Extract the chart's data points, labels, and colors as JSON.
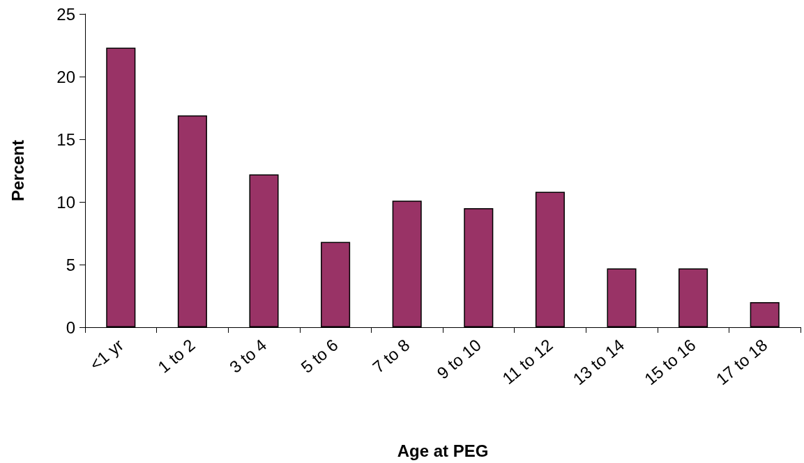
{
  "chart_data": {
    "type": "bar",
    "xlabel": "Age at PEG",
    "ylabel": "Percent",
    "categories": [
      "<1 yr",
      "1 to 2",
      "3 to 4",
      "5 to 6",
      "7 to 8",
      "9 to 10",
      "11 to 12",
      "13 to 14",
      "15 to 16",
      "17 to 18"
    ],
    "values": [
      22.3,
      16.9,
      12.2,
      6.8,
      10.1,
      9.5,
      10.8,
      4.7,
      4.7,
      2.0
    ],
    "color": "#993366",
    "ylim": [
      0,
      25
    ],
    "yticks": [
      0,
      5,
      10,
      15,
      20,
      25
    ],
    "grid": false
  }
}
